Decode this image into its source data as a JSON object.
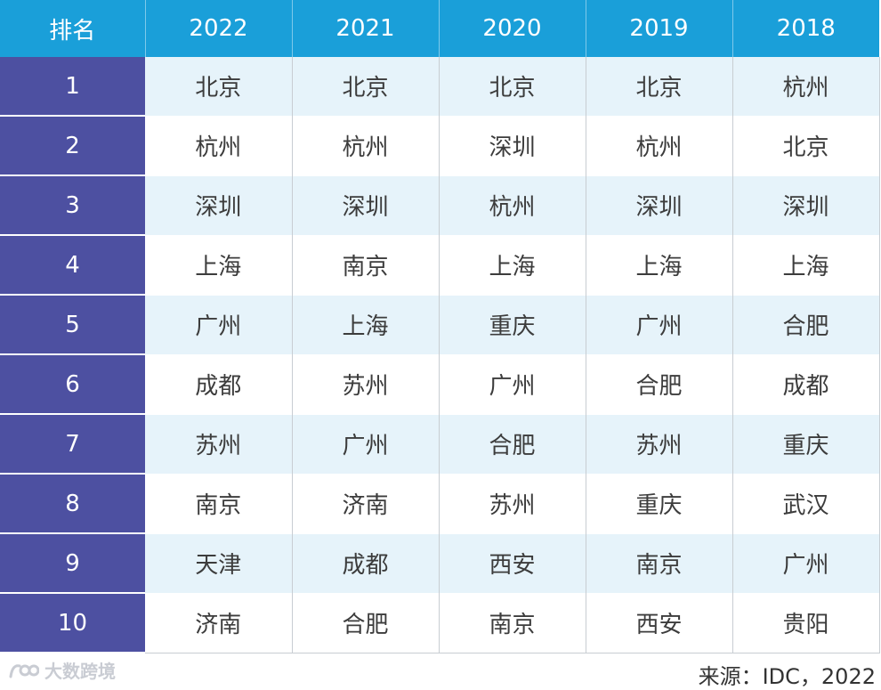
{
  "table": {
    "headers": [
      "排名",
      "2022",
      "2021",
      "2020",
      "2019",
      "2018"
    ],
    "rows": [
      {
        "rank": "1",
        "cities": [
          "北京",
          "北京",
          "北京",
          "北京",
          "杭州"
        ]
      },
      {
        "rank": "2",
        "cities": [
          "杭州",
          "杭州",
          "深圳",
          "杭州",
          "北京"
        ]
      },
      {
        "rank": "3",
        "cities": [
          "深圳",
          "深圳",
          "杭州",
          "深圳",
          "深圳"
        ]
      },
      {
        "rank": "4",
        "cities": [
          "上海",
          "南京",
          "上海",
          "上海",
          "上海"
        ]
      },
      {
        "rank": "5",
        "cities": [
          "广州",
          "上海",
          "重庆",
          "广州",
          "合肥"
        ]
      },
      {
        "rank": "6",
        "cities": [
          "成都",
          "苏州",
          "广州",
          "合肥",
          "成都"
        ]
      },
      {
        "rank": "7",
        "cities": [
          "苏州",
          "广州",
          "合肥",
          "苏州",
          "重庆"
        ]
      },
      {
        "rank": "8",
        "cities": [
          "南京",
          "济南",
          "苏州",
          "重庆",
          "武汉"
        ]
      },
      {
        "rank": "9",
        "cities": [
          "天津",
          "成都",
          "西安",
          "南京",
          "广州"
        ]
      },
      {
        "rank": "10",
        "cities": [
          "济南",
          "合肥",
          "南京",
          "西安",
          "贵阳"
        ]
      }
    ]
  },
  "watermark": {
    "text": "大数跨境",
    "icon": "logo-icon"
  },
  "source": "来源：IDC，2022",
  "colors": {
    "header_bg": "#1a9fd9",
    "rank_bg": "#4d50a1",
    "row_stripe": "#e6f3fa",
    "text": "#3c3c3c"
  }
}
